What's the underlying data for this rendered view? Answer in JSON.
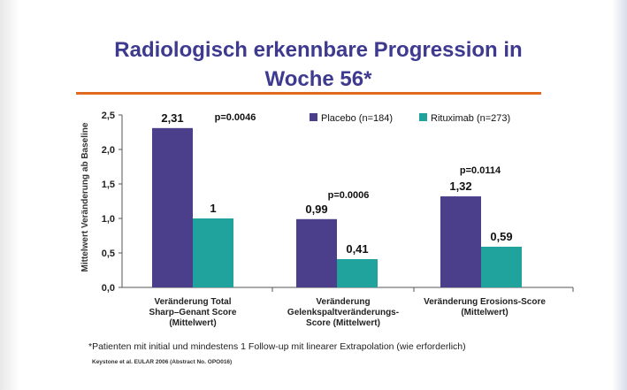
{
  "slide": {
    "title_line1": "Radiologisch erkennbare Progression in",
    "title_line2": "Woche 56*",
    "footnote": "*Patienten mit initial und mindestens 1 Follow-up mit linearer Extrapolation (wie erforderlich)",
    "source": "Keystone et al. EULAR 2006 (Abstract No. OPO016)"
  },
  "chart_data": {
    "type": "bar",
    "title": "Radiologisch erkennbare Progression in Woche 56*",
    "ylabel": "Mittelwert Veränderung ab Baseline",
    "ylim": [
      0,
      2.5
    ],
    "yticks": [
      "0,0",
      "0,5",
      "1,0",
      "1,5",
      "2,0",
      "2,5"
    ],
    "categories": [
      [
        "Veränderung Total",
        "Sharp–Genant Score",
        "(Mittelwert)"
      ],
      [
        "Veränderung",
        "Gelenkspaltveränderungs-",
        "Score (Mittelwert)"
      ],
      [
        "Veränderung Erosions-Score",
        "(Mittelwert)"
      ]
    ],
    "series": [
      {
        "name": "Placebo (n=184)",
        "color": "#4b3f8c",
        "values": [
          2.31,
          0.99,
          1.32
        ],
        "labels": [
          "2,31",
          "0,99",
          "1,32"
        ]
      },
      {
        "name": "Rituximab (n=273)",
        "color": "#1fa39c",
        "values": [
          1,
          0.41,
          0.59
        ],
        "labels": [
          "1",
          "0,41",
          "0,59"
        ]
      }
    ],
    "annotations": [
      "p=0.0046",
      "p=0.0006",
      "p=0.0114"
    ],
    "legend_position": "top-right",
    "grid": false
  }
}
